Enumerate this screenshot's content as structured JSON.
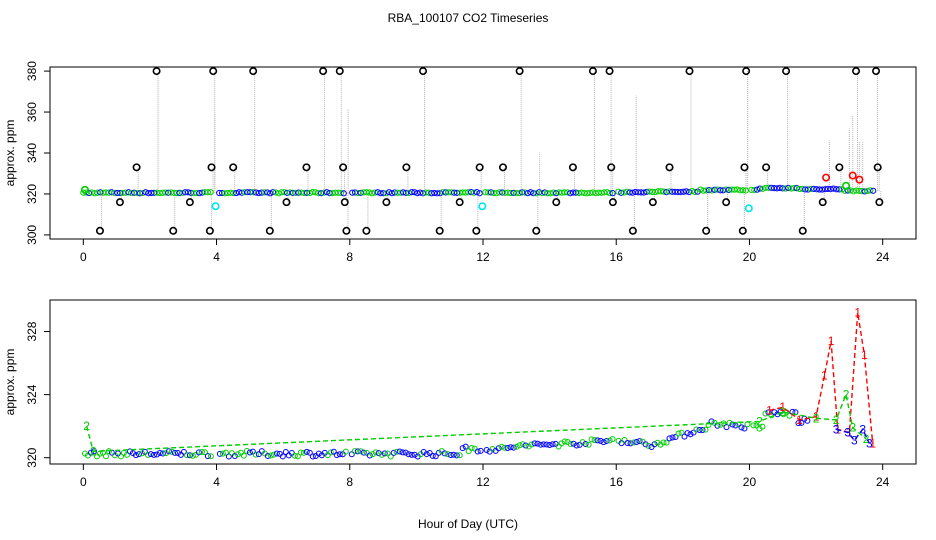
{
  "title": "RBA_100107  CO2 Timeseries",
  "xlabel": "Hour of Day (UTC)",
  "chart_data": [
    {
      "type": "scatter",
      "panel": "top",
      "ylabel": "approx. ppm",
      "xlim": [
        -1,
        25
      ],
      "ylim": [
        298,
        382
      ],
      "xticks": [
        0,
        4,
        8,
        12,
        16,
        20,
        24
      ],
      "yticks": [
        300,
        320,
        340,
        360,
        380
      ],
      "colors": {
        "black": "#000000",
        "red": "#ff0000",
        "green": "#00cd00",
        "blue": "#0000ff",
        "cyan": "#00e5ee",
        "grey": "#b3b3b3"
      },
      "series": [
        {
          "name": "black outliers",
          "x": [
            0.5,
            1.1,
            1.6,
            2.2,
            2.7,
            3.2,
            3.8,
            3.85,
            3.9,
            4.5,
            5.1,
            5.6,
            6.1,
            6.7,
            7.2,
            7.7,
            7.8,
            7.85,
            7.9,
            8.5,
            9.1,
            9.7,
            10.2,
            10.7,
            11.3,
            11.8,
            11.9,
            12.6,
            13.1,
            13.6,
            14.2,
            14.7,
            15.3,
            15.8,
            15.85,
            15.9,
            16.5,
            17.1,
            17.6,
            18.2,
            18.7,
            19.3,
            19.8,
            19.85,
            19.9,
            20.5,
            21.1,
            21.6,
            22.2,
            22.7,
            23.2,
            23.8,
            23.85,
            23.9
          ],
          "y": [
            302,
            316,
            333,
            380,
            302,
            316,
            302,
            333,
            380,
            333,
            380,
            302,
            316,
            333,
            380,
            380,
            333,
            316,
            302,
            302,
            316,
            333,
            380,
            302,
            316,
            302,
            333,
            333,
            380,
            302,
            316,
            333,
            380,
            380,
            333,
            316,
            302,
            316,
            333,
            380,
            302,
            316,
            302,
            333,
            380,
            333,
            380,
            302,
            316,
            333,
            380,
            380,
            333,
            316
          ]
        },
        {
          "name": "cyan",
          "x": [
            3.97,
            11.98,
            19.98
          ],
          "y": [
            314,
            314,
            313
          ]
        },
        {
          "name": "red",
          "x": [
            22.3,
            23.1,
            23.3
          ],
          "y": [
            328,
            329,
            327
          ]
        },
        {
          "name": "green",
          "x": [
            0.05,
            22.9
          ],
          "y": [
            322,
            324
          ]
        }
      ]
    },
    {
      "type": "line",
      "panel": "bottom",
      "ylabel": "approx. ppm",
      "xlim": [
        -1,
        25
      ],
      "ylim": [
        319.6,
        330
      ],
      "xticks": [
        0,
        4,
        8,
        12,
        16,
        20,
        24
      ],
      "yticks": [
        320,
        324,
        328
      ],
      "series": [
        {
          "name": "1",
          "color": "#ff0000",
          "x": [
            20.6,
            21.0,
            21.5,
            22.0,
            22.25,
            22.45,
            22.65,
            23.0,
            23.25,
            23.45,
            23.7
          ],
          "y": [
            323.0,
            323.2,
            322.4,
            322.6,
            325.2,
            327.4,
            321.8,
            321.6,
            329.2,
            326.5,
            320.9
          ]
        },
        {
          "name": "2",
          "color": "#00cd00",
          "x": [
            0.1,
            0.3,
            20.3,
            21.0,
            22.0,
            22.6,
            22.9,
            23.1,
            23.5
          ],
          "y": [
            322.0,
            320.4,
            322.3,
            322.9,
            322.5,
            322.4,
            324.0,
            321.9,
            321.2
          ]
        },
        {
          "name": "3",
          "color": "#0000ff",
          "x": [
            22.6,
            22.95,
            23.15,
            23.4,
            23.6
          ],
          "y": [
            321.8,
            321.6,
            321.1,
            321.8,
            320.9
          ]
        }
      ]
    }
  ]
}
